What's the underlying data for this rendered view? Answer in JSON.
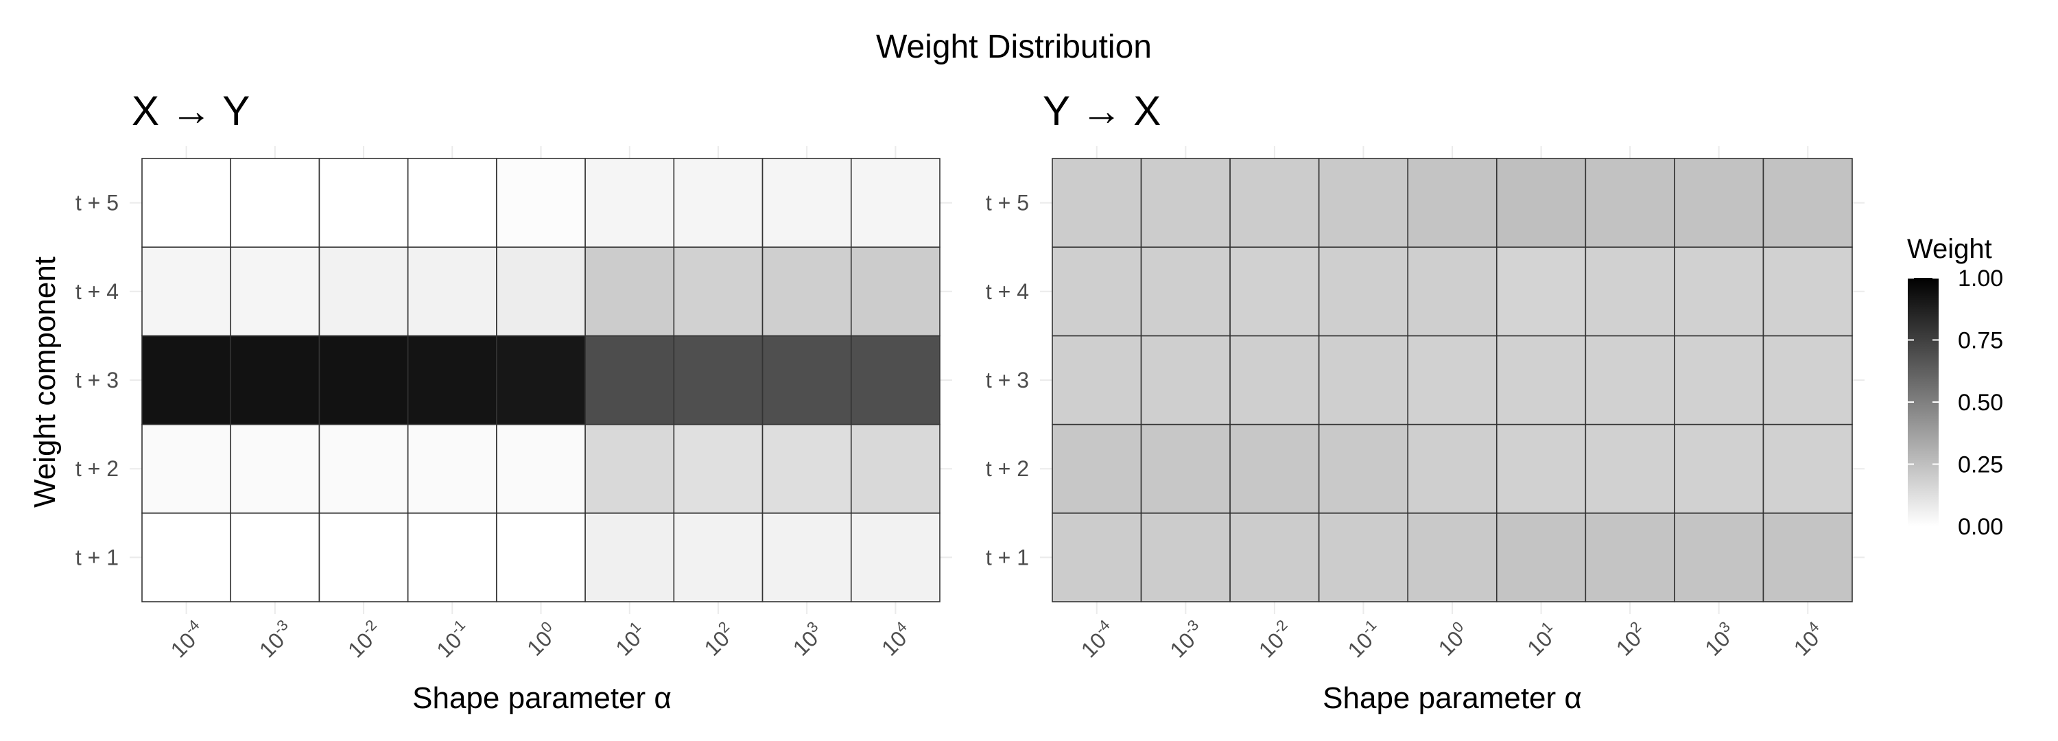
{
  "chart_data": {
    "type": "heatmap",
    "title": "Weight Distribution",
    "legend": {
      "title": "Weight",
      "ticks": [
        "0.00",
        "0.25",
        "0.50",
        "0.75",
        "1.00"
      ],
      "tick_values": [
        0,
        0.25,
        0.5,
        0.75,
        1
      ],
      "range": [
        0,
        1
      ],
      "color_low": "#ffffff",
      "color_high": "#000000",
      "position": "right"
    },
    "panels": [
      {
        "title": "X → Y",
        "xlabel": "Shape parameter α",
        "ylabel": "Weight component",
        "x_values": [
          0.0001,
          0.001,
          0.01,
          0.1,
          1,
          10,
          100,
          1000,
          10000
        ],
        "x": [
          "10^-4",
          "10^-3",
          "10^-2",
          "10^-1",
          "10^0",
          "10^1",
          "10^2",
          "10^3",
          "10^4"
        ],
        "y": [
          "t + 1",
          "t + 2",
          "t + 3",
          "t + 4",
          "t + 5"
        ],
        "values": [
          [
            0.0,
            0.0,
            0.0,
            0.0,
            0.0,
            0.06,
            0.05,
            0.05,
            0.05
          ],
          [
            0.02,
            0.02,
            0.02,
            0.02,
            0.02,
            0.15,
            0.12,
            0.13,
            0.15
          ],
          [
            0.93,
            0.93,
            0.93,
            0.92,
            0.91,
            0.7,
            0.69,
            0.69,
            0.69
          ],
          [
            0.04,
            0.04,
            0.05,
            0.05,
            0.07,
            0.2,
            0.18,
            0.19,
            0.2
          ],
          [
            0.0,
            0.0,
            0.0,
            0.0,
            0.01,
            0.04,
            0.04,
            0.04,
            0.04
          ]
        ]
      },
      {
        "title": "Y → X",
        "xlabel": "Shape parameter α",
        "ylabel": "",
        "x_values": [
          0.0001,
          0.001,
          0.01,
          0.1,
          1,
          10,
          100,
          1000,
          10000
        ],
        "x": [
          "10^-4",
          "10^-3",
          "10^-2",
          "10^-1",
          "10^0",
          "10^1",
          "10^2",
          "10^3",
          "10^4"
        ],
        "y": [
          "t + 1",
          "t + 2",
          "t + 3",
          "t + 4",
          "t + 5"
        ],
        "values": [
          [
            0.2,
            0.2,
            0.2,
            0.2,
            0.21,
            0.23,
            0.23,
            0.23,
            0.23
          ],
          [
            0.22,
            0.22,
            0.22,
            0.21,
            0.19,
            0.18,
            0.18,
            0.18,
            0.18
          ],
          [
            0.19,
            0.19,
            0.19,
            0.19,
            0.18,
            0.18,
            0.18,
            0.18,
            0.18
          ],
          [
            0.19,
            0.19,
            0.18,
            0.19,
            0.19,
            0.17,
            0.18,
            0.18,
            0.18
          ],
          [
            0.2,
            0.2,
            0.2,
            0.21,
            0.23,
            0.25,
            0.24,
            0.24,
            0.24
          ]
        ]
      }
    ]
  }
}
